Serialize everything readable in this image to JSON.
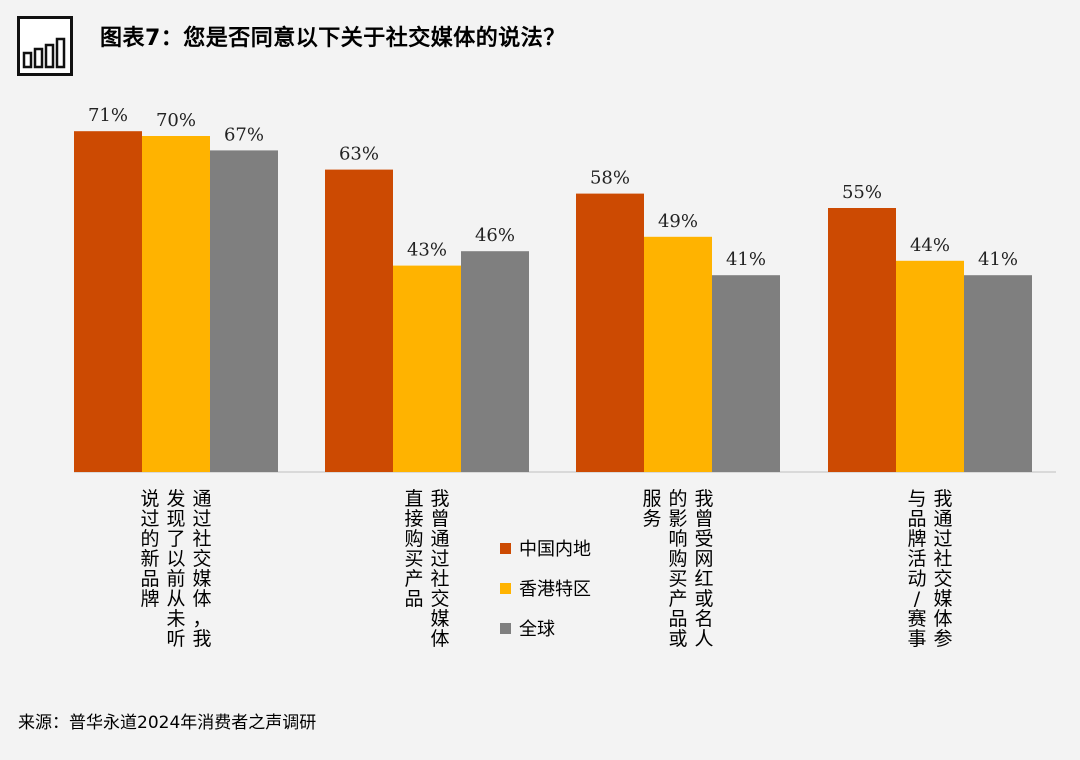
{
  "title": "图表7：您是否同意以下关于社交媒体的说法？",
  "footer": "来源：普华永道2024年消费者之声调研",
  "chart_data": {
    "type": "bar",
    "title": "图表7：您是否同意以下关于社交媒体的说法？",
    "categories": [
      "通过社交媒体，我发现了以前从未听说过的新品牌",
      "我曾通过社交媒体直接购买产品",
      "我曾受网红或名人的影响购买产品或服务",
      "我通过社交媒体参与品牌活动/赛事"
    ],
    "series": [
      {
        "name": "中国内地",
        "color": "#cc4a02",
        "values": [
          71,
          63,
          58,
          55
        ]
      },
      {
        "name": "香港特区",
        "color": "#ffb300",
        "values": [
          70,
          43,
          49,
          44
        ]
      },
      {
        "name": "全球",
        "color": "#7f7f7f",
        "values": [
          67,
          46,
          41,
          41
        ]
      }
    ],
    "value_suffix": "%",
    "ylim": [
      0,
      75
    ],
    "grid": false,
    "legend_position": "bottom-center"
  }
}
